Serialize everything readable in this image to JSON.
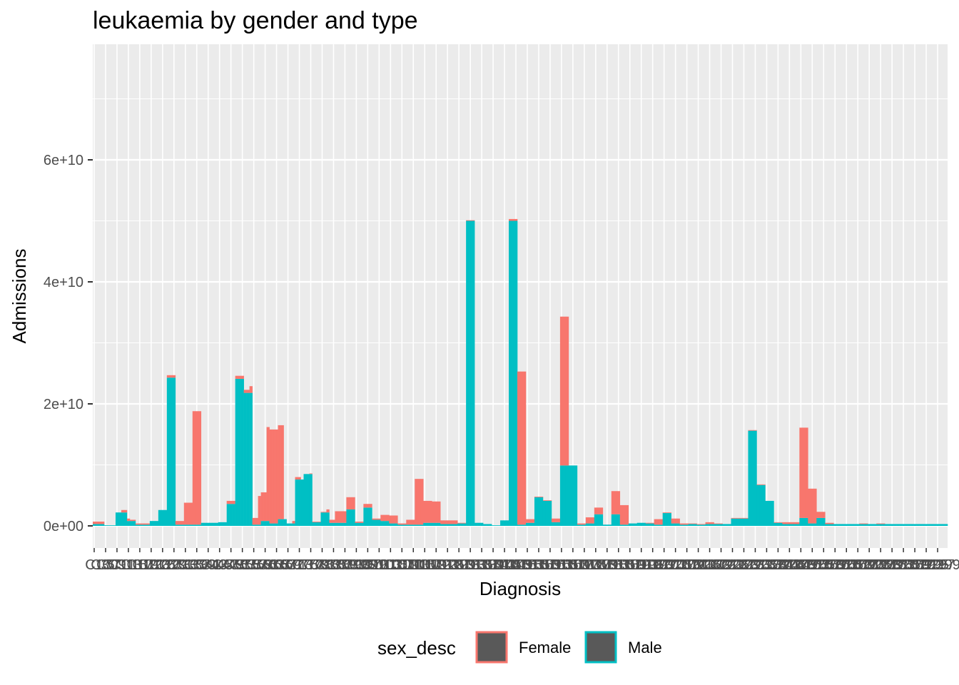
{
  "chart_data": {
    "type": "bar",
    "stacked": true,
    "title": "leukaemia by gender and type",
    "xlabel": "Diagnosis",
    "ylabel": "Admissions",
    "ylim": [
      0,
      76000000000
    ],
    "yticks": [
      0,
      20000000000,
      40000000000,
      60000000000
    ],
    "ytick_labels": [
      "0e+00",
      "2e+10",
      "4e+10",
      "6e+10"
    ],
    "grid": true,
    "legend_position": "bottom",
    "legend_title": "sex_desc",
    "colors": {
      "Female": "#F8766D",
      "Male": "#00BFC4",
      "panel": "#EBEBEB",
      "grid": "#FFFFFF"
    },
    "categories": [
      "C1",
      "C2",
      "C3",
      "C4",
      "C5",
      "C6",
      "C7",
      "C8",
      "C9",
      "C10",
      "C11",
      "C12",
      "C13",
      "C14",
      "C15",
      "C16",
      "C17",
      "C18",
      "C19",
      "C20",
      "C21",
      "C22",
      "C23",
      "C24",
      "C25",
      "C26",
      "C27",
      "C28",
      "C29",
      "C30",
      "C31",
      "C32",
      "C33",
      "C34",
      "C35",
      "C36",
      "C37",
      "C38",
      "C39",
      "C40",
      "C41",
      "C42",
      "C43",
      "C44",
      "C45",
      "C46",
      "C47",
      "C48",
      "C49",
      "C50",
      "C51",
      "C52",
      "C53",
      "C54",
      "C55",
      "C56",
      "C57",
      "C58",
      "C59",
      "C60",
      "C61",
      "C62",
      "C63",
      "C64",
      "C65",
      "C66",
      "C67",
      "C68",
      "C69",
      "C70",
      "C71",
      "C72",
      "C73",
      "C74",
      "C75",
      "C76",
      "C77",
      "C78",
      "C79",
      "C80",
      "C81",
      "C82",
      "C83",
      "C84",
      "C85",
      "C86",
      "C87",
      "C88",
      "C89",
      "C90",
      "C91",
      "C92",
      "C93",
      "C94",
      "C95",
      "C96",
      "C97",
      "C98",
      "C99",
      "C100",
      "C101",
      "C102",
      "C103",
      "C104",
      "C105",
      "C106",
      "C107",
      "C108",
      "C109",
      "C110",
      "C111",
      "C112",
      "C113",
      "C114",
      "C115",
      "C116",
      "C117",
      "C118",
      "C119",
      "C120",
      "C121",
      "C122",
      "C123",
      "C124",
      "C125",
      "C126",
      "C127",
      "C128",
      "C129",
      "C130",
      "C131",
      "C132",
      "C133",
      "C134",
      "C135",
      "C136",
      "C137",
      "C138",
      "C139",
      "C140",
      "C141",
      "C142",
      "C143",
      "C144",
      "C145",
      "C146",
      "C147",
      "C148",
      "C149",
      "C150",
      "C151",
      "C152",
      "C153",
      "C154",
      "C155",
      "C156",
      "C157",
      "C158",
      "C159",
      "C160",
      "C161",
      "C162",
      "C163",
      "C164",
      "C165",
      "C166",
      "C167",
      "C168",
      "C169",
      "C170",
      "C171",
      "C172",
      "C173",
      "C174",
      "C175",
      "C176",
      "C177",
      "C178",
      "C179",
      "C180",
      "C181",
      "C182",
      "C183",
      "C184",
      "C185",
      "C186",
      "C187",
      "C188",
      "C189",
      "C190",
      "C191",
      "C192",
      "C193",
      "C194",
      "C195",
      "C196",
      "C197",
      "C198",
      "C199",
      "C200",
      "C201",
      "C202",
      "C203",
      "C204",
      "C205",
      "C206",
      "C207",
      "C208",
      "C209",
      "C210",
      "C211",
      "C212",
      "C213",
      "C214",
      "C215",
      "C216",
      "C217",
      "C218",
      "C219",
      "C220",
      "C221",
      "C222",
      "C223",
      "C224",
      "C225",
      "C226",
      "C227",
      "C228",
      "C229",
      "C230",
      "C231",
      "C232",
      "C233",
      "C234",
      "C235",
      "C236",
      "C237",
      "C238",
      "C239",
      "C240",
      "C241",
      "C242",
      "C243",
      "C244",
      "C245",
      "C246",
      "C247",
      "C248",
      "C249",
      "C250",
      "C251",
      "C252",
      "C253",
      "C254",
      "C255",
      "C256",
      "C257",
      "C258",
      "C259",
      "C260",
      "C261",
      "C262",
      "C263",
      "C264",
      "C265",
      "C266",
      "C267",
      "C268",
      "C269",
      "C270",
      "C271",
      "C272",
      "C273",
      "C274",
      "C275",
      "C276",
      "C277",
      "C278",
      "C279",
      "C280",
      "C281",
      "C282",
      "C283",
      "C284",
      "C285",
      "C286",
      "C287",
      "C288",
      "C289",
      "C290",
      "C291",
      "C292",
      "C293",
      "C294",
      "C295",
      "C296",
      "C297",
      "C298",
      "C299",
      "C300"
    ],
    "series": [
      {
        "name": "Female",
        "values": [
          0.4,
          0.4,
          0.4,
          0.4,
          0,
          0,
          0,
          0,
          0,
          0,
          0.4,
          0.4,
          0.4,
          0.2,
          0.2,
          0.2,
          0.2,
          0.2,
          0.2,
          0.2,
          0,
          0,
          0,
          0,
          0,
          0,
          0.4,
          0.4,
          0.4,
          0.6,
          0.6,
          0.6,
          3.6,
          3.6,
          3.6,
          18.6,
          18.6,
          18.6,
          0,
          0,
          0,
          0,
          0,
          0,
          0,
          0,
          0,
          0.5,
          0.5,
          0.5,
          0.5,
          0.5,
          0.5,
          0.5,
          0.5,
          1.1,
          1.1,
          1.1,
          4.7,
          4.7,
          4.7,
          15.4,
          15.4,
          15.4,
          15.4,
          15.4,
          15.4,
          0,
          0,
          0,
          0.4,
          0.4,
          0.4,
          0,
          0,
          0,
          0.1,
          0.1,
          0.1,
          0.1,
          0.1,
          0.1,
          0.5,
          0.5,
          0.5,
          1.9,
          1.9,
          1.9,
          1.9,
          2.0,
          2.0,
          2.0,
          0.2,
          0.2,
          0.2,
          0.6,
          0.6,
          0.6,
          0.2,
          0.2,
          0.2,
          1.0,
          1.0,
          1.0,
          1.3,
          1.3,
          1.3,
          0.2,
          0.2,
          0.2,
          0.8,
          0.8,
          0.8,
          7.5,
          7.5,
          7.5,
          3.6,
          3.6,
          3.6,
          3.5,
          3.5,
          3.5,
          0.6,
          0.6,
          0.6,
          0.6,
          0.6,
          0.6,
          0.1,
          0.1,
          0.1,
          0.1,
          0.1,
          0.1,
          0,
          0,
          0,
          0,
          0,
          0,
          0,
          0,
          0,
          0,
          0,
          0,
          0.3,
          0.3,
          0.3,
          25.1,
          25.1,
          25.1,
          0.6,
          0.6,
          0.6,
          0.1,
          0.1,
          0.1,
          0.1,
          0.1,
          0.1,
          0.6,
          0.6,
          0.6,
          24.4,
          24.4,
          24.4,
          0,
          0,
          0,
          0.2,
          0.2,
          0.2,
          1.0,
          1.0,
          1.0,
          1.1,
          1.1,
          1.1,
          0,
          0,
          0,
          3.8,
          3.8,
          3.8,
          3.2,
          3.2,
          3.2,
          0,
          0,
          0,
          0,
          0,
          0,
          0.1,
          0.1,
          0.1,
          0.9,
          0.9,
          0.9,
          0.1,
          0.1,
          0.1,
          0.8,
          0.8,
          0.8,
          0.2,
          0.2,
          0.2,
          0.1,
          0.1,
          0.1,
          0.1,
          0.1,
          0.1,
          0.3,
          0.3,
          0.3,
          0.1,
          0.1,
          0.1,
          0,
          0,
          0,
          0.1,
          0.1,
          0.1,
          0.1,
          0.1,
          0.1,
          0.1,
          0.1,
          0.1,
          0.1,
          0.1,
          0.1,
          0,
          0,
          0,
          0.1,
          0.1,
          0.1,
          0.3,
          0.3,
          0.3,
          0.3,
          0.3,
          0.3,
          14.8,
          14.8,
          14.8,
          5.7,
          5.7,
          5.7,
          1.0,
          1.0,
          1.0,
          0.2,
          0.2,
          0.2,
          0,
          0,
          0,
          0,
          0,
          0,
          0,
          0,
          0,
          0.1,
          0.1,
          0.1,
          0,
          0,
          0,
          0.1,
          0.1,
          0.1,
          0,
          0,
          0,
          0,
          0,
          0,
          0,
          0,
          0,
          0,
          0,
          0,
          0,
          0,
          0,
          0,
          0,
          0,
          0,
          0,
          0,
          0
        ]
      },
      {
        "name": "Male",
        "values": [
          0.3,
          0.3,
          0.3,
          0.3,
          0.1,
          0.1,
          0.1,
          0.1,
          2.2,
          2.2,
          2.2,
          2.2,
          0.8,
          0.8,
          0.8,
          0.2,
          0.2,
          0.2,
          0.2,
          0.2,
          0.8,
          0.8,
          0.8,
          2.6,
          2.6,
          2.6,
          24.3,
          24.3,
          24.3,
          0.2,
          0.2,
          0.2,
          0.2,
          0.2,
          0.2,
          0.2,
          0.2,
          0.2,
          0.5,
          0.5,
          0.5,
          0.5,
          0.5,
          0.5,
          0.6,
          0.6,
          0.6,
          3.6,
          3.6,
          3.6,
          24.1,
          24.1,
          24.1,
          21.8,
          21.8,
          21.8,
          0.2,
          0.2,
          0.2,
          0.8,
          0.8,
          0.8,
          0.4,
          0.4,
          0.4,
          1.1,
          1.1,
          1.1,
          0.4,
          0.4,
          0.4,
          7.6,
          7.6,
          7.6,
          8.5,
          8.5,
          8.5,
          0.6,
          0.6,
          0.6,
          2.2,
          2.2,
          2.2,
          0.5,
          0.5,
          0.5,
          0.5,
          0.5,
          0.5,
          2.7,
          2.7,
          2.7,
          0.5,
          0.5,
          0.5,
          3.0,
          3.0,
          3.0,
          1.0,
          1.0,
          1.0,
          0.8,
          0.8,
          0.8,
          0.4,
          0.4,
          0.4,
          0.2,
          0.2,
          0.2,
          0.2,
          0.2,
          0.2,
          0.2,
          0.2,
          0.2,
          0.5,
          0.5,
          0.5,
          0.5,
          0.5,
          0.5,
          0.3,
          0.3,
          0.3,
          0.3,
          0.3,
          0.3,
          0.4,
          0.4,
          0.4,
          50.0,
          50.0,
          50.0,
          0.5,
          0.5,
          0.5,
          0.3,
          0.3,
          0.3,
          0.1,
          0.1,
          0.1,
          0.9,
          0.9,
          0.9,
          50.0,
          50.0,
          50.0,
          0.2,
          0.2,
          0.2,
          0.5,
          0.5,
          0.5,
          4.7,
          4.7,
          4.7,
          4.1,
          4.1,
          4.1,
          0.6,
          0.6,
          0.6,
          9.9,
          9.9,
          9.9,
          9.9,
          9.9,
          9.9,
          0.2,
          0.2,
          0.2,
          0.4,
          0.4,
          0.4,
          1.9,
          1.9,
          1.9,
          0.2,
          0.2,
          0.2,
          1.9,
          1.9,
          1.9,
          0.2,
          0.2,
          0.2,
          0.4,
          0.4,
          0.4,
          0.5,
          0.5,
          0.5,
          0.4,
          0.4,
          0.4,
          0.2,
          0.2,
          0.2,
          2.1,
          2.1,
          2.1,
          0.4,
          0.4,
          0.4,
          0.2,
          0.2,
          0.2,
          0.3,
          0.3,
          0.3,
          0.2,
          0.2,
          0.2,
          0.3,
          0.3,
          0.3,
          0.3,
          0.3,
          0.3,
          0.3,
          0.3,
          0.3,
          1.2,
          1.2,
          1.2,
          1.2,
          1.2,
          1.2,
          15.6,
          15.6,
          15.6,
          6.7,
          6.7,
          6.7,
          4.1,
          4.1,
          4.1,
          0.5,
          0.5,
          0.5,
          0.3,
          0.3,
          0.3,
          0.3,
          0.3,
          0.3,
          1.3,
          1.3,
          1.3,
          0.4,
          0.4,
          0.4,
          1.3,
          1.3,
          1.3,
          0.3,
          0.3,
          0.3,
          0.3,
          0.3,
          0.3,
          0.3,
          0.3,
          0.3,
          0.3,
          0.3,
          0.3,
          0.3,
          0.3,
          0.3,
          0.3,
          0.3,
          0.3,
          0.3,
          0.3,
          0.3,
          0.3,
          0.3,
          0.3,
          0.3,
          0.3,
          0.3,
          0.3,
          0.3,
          0.3,
          0.3,
          0.3,
          0.3,
          0.3,
          0.3,
          0.3,
          0.3,
          0.3,
          0.3,
          0.3,
          0.3,
          0.3,
          0.3
        ]
      }
    ],
    "value_scale": 1000000000
  }
}
